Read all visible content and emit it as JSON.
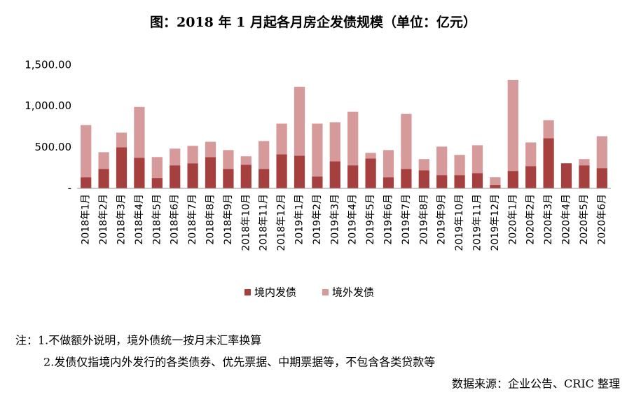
{
  "chart_data": {
    "type": "stacked-bar",
    "title": "图：2018 年 1 月起各月房企发债规模（单位：亿元）",
    "categories": [
      "2018年1月",
      "2018年2月",
      "2018年3月",
      "2018年4月",
      "2018年5月",
      "2018年6月",
      "2018年7月",
      "2018年8月",
      "2018年9月",
      "2018年10月",
      "2018年11月",
      "2018年12月",
      "2019年1月",
      "2019年2月",
      "2019年3月",
      "2019年4月",
      "2019年5月",
      "2019年6月",
      "2019年7月",
      "2019年8月",
      "2019年9月",
      "2019年10月",
      "2019年11月",
      "2019年12月",
      "2020年1月",
      "2020年2月",
      "2020年3月",
      "2020年4月",
      "2020年5月",
      "2020年6月"
    ],
    "series": [
      {
        "name": "境内发债",
        "color": "#a5403f",
        "values": [
          135,
          237,
          500,
          373,
          127,
          280,
          305,
          381,
          237,
          288,
          237,
          415,
          398,
          144,
          330,
          280,
          364,
          135,
          237,
          220,
          161,
          161,
          186,
          42,
          212,
          271,
          610,
          305,
          280,
          246
        ]
      },
      {
        "name": "境外发债",
        "color": "#d79a9a",
        "values": [
          635,
          203,
          178,
          618,
          254,
          203,
          212,
          186,
          229,
          102,
          339,
          373,
          839,
          644,
          475,
          652,
          68,
          331,
          669,
          136,
          347,
          246,
          339,
          93,
          1109,
          288,
          220,
          0,
          76,
          389
        ]
      }
    ],
    "ylim": [
      0,
      1500
    ],
    "yticks": [
      {
        "value": 0,
        "label": "-"
      },
      {
        "value": 500,
        "label": "500.00"
      },
      {
        "value": 1000,
        "label": "1,000.00"
      },
      {
        "value": 1500,
        "label": "1,500.00"
      }
    ],
    "grid": false,
    "legend": "bottom"
  },
  "notes": [
    "注：1.不做额外说明，境外债统一按月末汇率换算",
    "2.发债仅指境内外发行的各类债券、优先票据、中期票据等，不包含各类贷款等"
  ],
  "source": "数据来源：企业公告、CRIC 整理"
}
